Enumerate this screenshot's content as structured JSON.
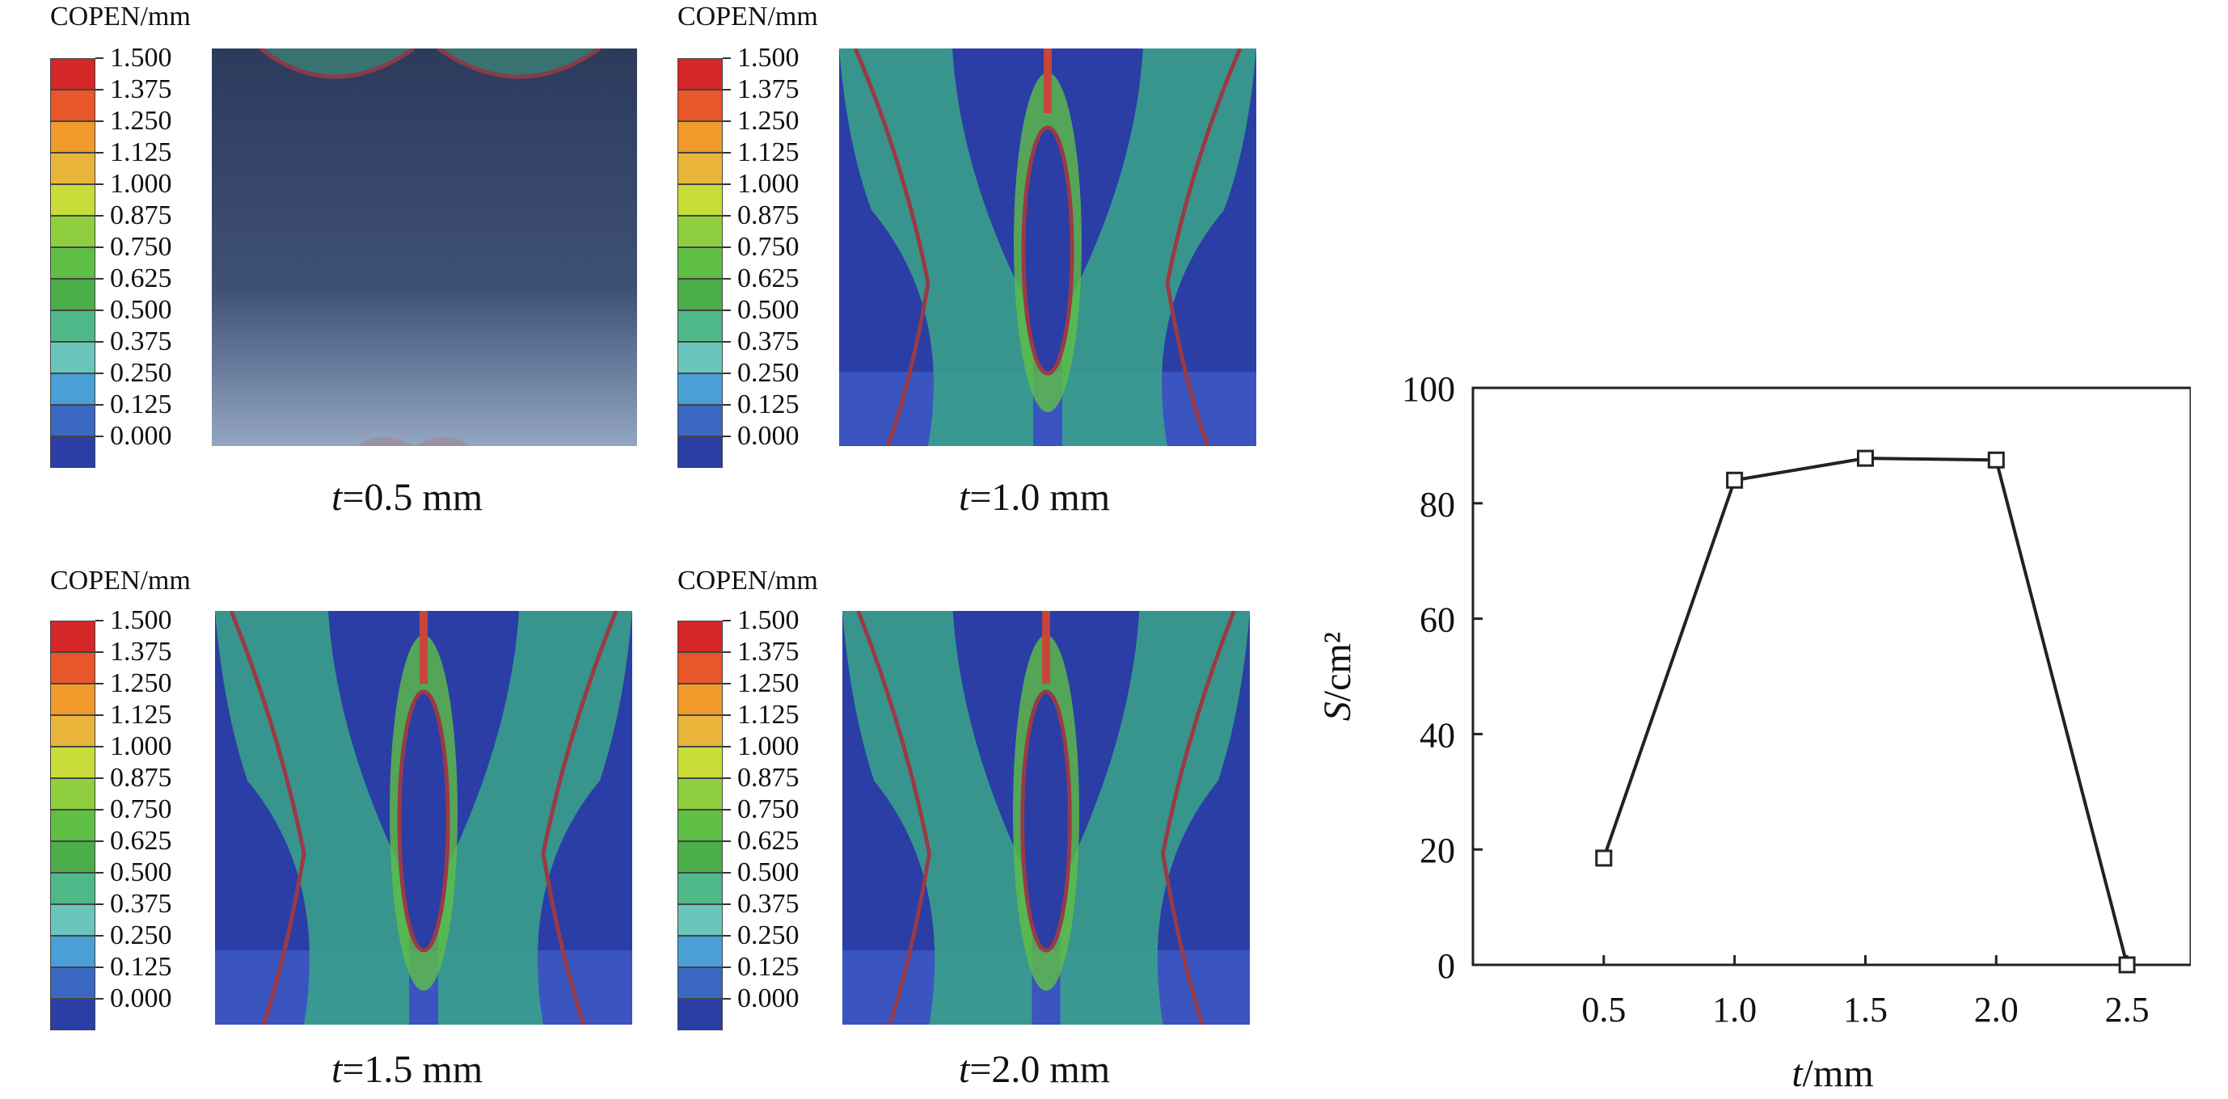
{
  "legend": {
    "title": "COPEN/mm",
    "labels": [
      "1.500",
      "1.375",
      "1.250",
      "1.125",
      "1.000",
      "0.875",
      "0.750",
      "0.625",
      "0.500",
      "0.375",
      "0.250",
      "0.125",
      "0.000"
    ],
    "colors": [
      "#d62728",
      "#e8562a",
      "#ef9a2a",
      "#e8b43a",
      "#c8dc3a",
      "#8fcf3f",
      "#5fbf45",
      "#4cae4a",
      "#4fb889",
      "#6ac6bd",
      "#4a9fd6",
      "#3a67c0",
      "#2a3ea6"
    ]
  },
  "contours": [
    {
      "t_var": "t",
      "t_rest": "=0.5 mm"
    },
    {
      "t_var": "t",
      "t_rest": "=1.0 mm"
    },
    {
      "t_var": "t",
      "t_rest": "=1.5 mm"
    },
    {
      "t_var": "t",
      "t_rest": "=2.0 mm"
    }
  ],
  "chart_data": {
    "type": "line",
    "x": [
      0.5,
      1.0,
      1.5,
      2.0,
      2.5
    ],
    "y": [
      18.5,
      84,
      87.8,
      87.5,
      0
    ],
    "x_tick_labels": [
      "0.5",
      "1.0",
      "1.5",
      "2.0",
      "2.5"
    ],
    "y_tick_labels": [
      "0",
      "20",
      "40",
      "60",
      "80",
      "100"
    ],
    "xlim": [
      0.0,
      2.75
    ],
    "ylim": [
      0,
      100
    ],
    "xlabel_var": "t",
    "xlabel_unit": "/mm",
    "ylabel_var": "S",
    "ylabel_unit": "/cm²",
    "marker": "square-open",
    "grid": false,
    "line_color": "#222222"
  }
}
